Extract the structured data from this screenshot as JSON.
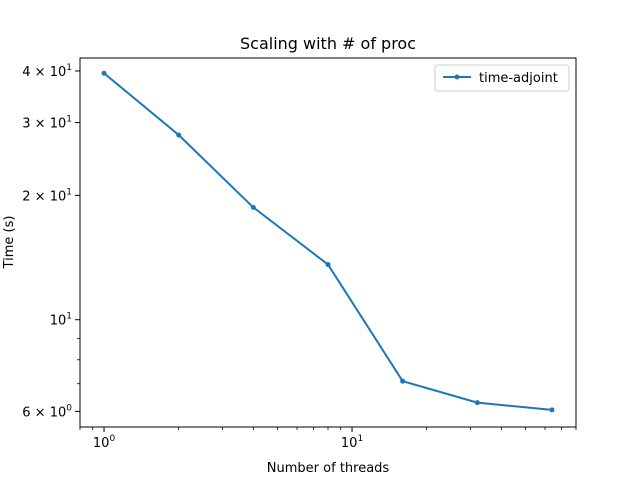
{
  "chart_data": {
    "type": "line",
    "title": "Scaling with # of proc",
    "xlabel": "Number of threads",
    "ylabel": "Time (s)",
    "xscale": "log",
    "yscale": "log",
    "xlim": [
      0.8,
      80
    ],
    "ylim": [
      5.5,
      43
    ],
    "grid": false,
    "legend_position": "top-right",
    "x_ticks": [
      {
        "value": 1,
        "base": "10",
        "exp": "0"
      },
      {
        "value": 10,
        "base": "10",
        "exp": "1"
      }
    ],
    "y_ticks": [
      {
        "value": 6,
        "coef": "6",
        "base": "10",
        "exp": "0"
      },
      {
        "value": 10,
        "coef": "",
        "base": "10",
        "exp": "1"
      },
      {
        "value": 20,
        "coef": "2",
        "base": "10",
        "exp": "1"
      },
      {
        "value": 30,
        "coef": "3",
        "base": "10",
        "exp": "1"
      },
      {
        "value": 40,
        "coef": "4",
        "base": "10",
        "exp": "1"
      }
    ],
    "series": [
      {
        "name": "time-adjoint",
        "color": "#1f77b4",
        "marker": "circle",
        "x": [
          1,
          2,
          4,
          8,
          16,
          32,
          64
        ],
        "y": [
          39.5,
          28.0,
          18.7,
          13.6,
          7.1,
          6.3,
          6.05
        ]
      }
    ]
  }
}
